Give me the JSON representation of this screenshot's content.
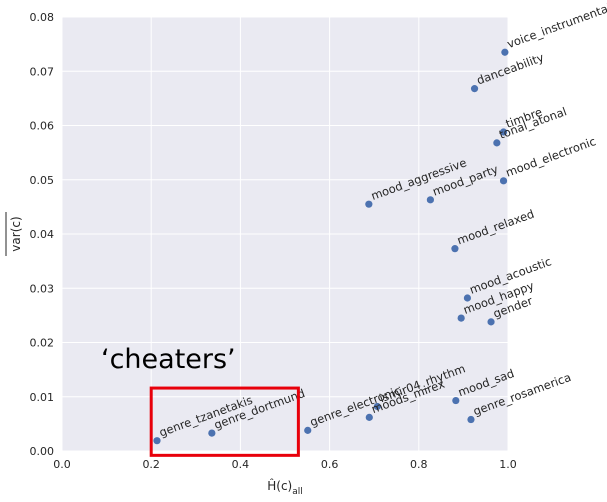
{
  "chart_data": {
    "type": "scatter",
    "xlabel_main": "Ĥ(c)",
    "xlabel_sub": "all",
    "ylabel": "var(c)",
    "xlim": [
      0.0,
      1.0
    ],
    "ylim": [
      0.0,
      0.08
    ],
    "xticks": [
      "0.0",
      "0.2",
      "0.4",
      "0.6",
      "0.8",
      "1.0"
    ],
    "yticks": [
      "0.00",
      "0.01",
      "0.02",
      "0.03",
      "0.04",
      "0.05",
      "0.06",
      "0.07",
      "0.08"
    ],
    "grid": true,
    "point_color": "#4c72b0",
    "background": "#eaeaf2",
    "annotation": {
      "text": "‘cheaters’",
      "box_x_range": [
        0.2,
        0.53
      ],
      "box_y_range": [
        -0.0008,
        0.0116
      ],
      "box_color": "#e8000b"
    },
    "points": [
      {
        "label": "voice_instrumental",
        "x": 0.993,
        "y": 0.0735
      },
      {
        "label": "danceability",
        "x": 0.925,
        "y": 0.0668
      },
      {
        "label": "timbre",
        "x": 0.99,
        "y": 0.0588
      },
      {
        "label": "tonal_atonal",
        "x": 0.975,
        "y": 0.0568
      },
      {
        "label": "mood_electronic",
        "x": 0.99,
        "y": 0.0498
      },
      {
        "label": "mood_aggressive",
        "x": 0.688,
        "y": 0.0455
      },
      {
        "label": "mood_party",
        "x": 0.826,
        "y": 0.0463
      },
      {
        "label": "mood_relaxed",
        "x": 0.881,
        "y": 0.0373
      },
      {
        "label": "mood_acoustic",
        "x": 0.909,
        "y": 0.0282
      },
      {
        "label": "mood_happy",
        "x": 0.895,
        "y": 0.0245
      },
      {
        "label": "gender",
        "x": 0.962,
        "y": 0.0238
      },
      {
        "label": "mood_sad",
        "x": 0.883,
        "y": 0.0093
      },
      {
        "label": "genre_rosamerica",
        "x": 0.917,
        "y": 0.0058
      },
      {
        "label": "ismir04_rhythm",
        "x": 0.707,
        "y": 0.0082
      },
      {
        "label": "moods_mirex",
        "x": 0.689,
        "y": 0.0062
      },
      {
        "label": "genre_electronic",
        "x": 0.551,
        "y": 0.0038
      },
      {
        "label": "genre_tzanetakis",
        "x": 0.213,
        "y": 0.0019
      },
      {
        "label": "genre_dortmund",
        "x": 0.336,
        "y": 0.0033
      }
    ]
  }
}
